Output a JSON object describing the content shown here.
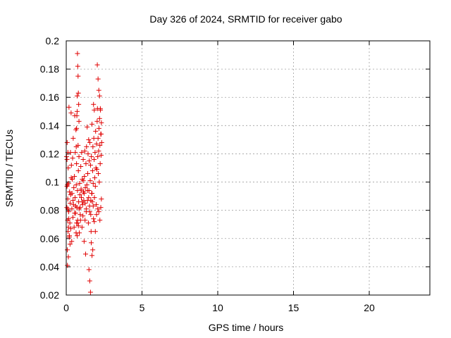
{
  "chart_data": {
    "type": "scatter",
    "title": "Day 326 of 2024, SRMTID for receiver gabo",
    "xlabel": "GPS time / hours",
    "ylabel": "SRMTID / TECUs",
    "xlim": [
      0,
      24
    ],
    "ylim": [
      0.02,
      0.2
    ],
    "xticks": [
      0,
      5,
      10,
      15,
      20
    ],
    "xtick_labels": [
      "0",
      "5",
      "10",
      "15",
      "20"
    ],
    "yticks": [
      0.02,
      0.04,
      0.06,
      0.08,
      0.1,
      0.12,
      0.14,
      0.16,
      0.18,
      0.2
    ],
    "ytick_labels": [
      "0.02",
      "0.04",
      "0.06",
      "0.08",
      "0.1",
      "0.12",
      "0.14",
      "0.16",
      "0.18",
      "0.2"
    ],
    "grid": true,
    "marker": "+",
    "marker_color": "#e00000",
    "series": [
      {
        "name": "SRMTID",
        "x": [
          0.02,
          0.04,
          0.05,
          0.06,
          0.07,
          0.08,
          0.09,
          0.1,
          0.11,
          0.12,
          0.13,
          0.14,
          0.15,
          0.16,
          0.18,
          0.2,
          0.22,
          0.24,
          0.26,
          0.28,
          0.3,
          0.32,
          0.34,
          0.36,
          0.38,
          0.4,
          0.42,
          0.44,
          0.46,
          0.48,
          0.5,
          0.52,
          0.54,
          0.56,
          0.58,
          0.6,
          0.62,
          0.64,
          0.66,
          0.68,
          0.7,
          0.72,
          0.74,
          0.76,
          0.78,
          0.8,
          0.82,
          0.84,
          0.86,
          0.88,
          0.9,
          0.92,
          0.94,
          0.96,
          0.98,
          1.0,
          1.02,
          1.04,
          1.06,
          1.08,
          1.1,
          1.12,
          1.14,
          1.16,
          1.18,
          1.2,
          1.22,
          1.24,
          1.26,
          1.28,
          1.3,
          1.32,
          1.34,
          1.36,
          1.38,
          1.4,
          1.42,
          1.44,
          1.46,
          1.48,
          1.5,
          1.52,
          1.54,
          1.56,
          1.58,
          1.6,
          1.62,
          1.64,
          1.66,
          1.68,
          1.7,
          1.72,
          1.74,
          1.76,
          1.78,
          1.8,
          1.82,
          1.84,
          1.86,
          1.88,
          1.9,
          1.92,
          1.94,
          1.96,
          1.98,
          2.0,
          2.02,
          2.04,
          2.06,
          2.08,
          2.1,
          2.12,
          2.14,
          2.16,
          2.18,
          2.2,
          2.22,
          2.24,
          2.26,
          2.28,
          2.3,
          2.32,
          2.34,
          0.05,
          0.08,
          0.11,
          0.14,
          0.17,
          0.21,
          0.25,
          0.29,
          0.33,
          0.37,
          0.45,
          0.55,
          0.62,
          0.65,
          0.68,
          0.72,
          0.75,
          0.8,
          0.85,
          0.92,
          0.98,
          1.05,
          1.12,
          1.18,
          1.25,
          1.32,
          1.4,
          1.48,
          1.55,
          1.62,
          1.7,
          1.78,
          1.85,
          1.92,
          2.0,
          2.08,
          2.15,
          2.22,
          2.28,
          2.32,
          0.66,
          0.68,
          0.7,
          0.72,
          0.74,
          0.76,
          0.78,
          0.8,
          0.82,
          0.84,
          1.5,
          1.55,
          1.6,
          1.65,
          1.7,
          1.75,
          1.8,
          1.85,
          2.05,
          2.1,
          2.15,
          2.2,
          2.25,
          2.3
        ],
        "y": [
          0.118,
          0.082,
          0.097,
          0.128,
          0.052,
          0.041,
          0.073,
          0.088,
          0.121,
          0.065,
          0.11,
          0.047,
          0.099,
          0.079,
          0.153,
          0.061,
          0.093,
          0.071,
          0.085,
          0.121,
          0.067,
          0.149,
          0.112,
          0.058,
          0.092,
          0.102,
          0.117,
          0.075,
          0.131,
          0.084,
          0.096,
          0.068,
          0.104,
          0.147,
          0.089,
          0.121,
          0.078,
          0.137,
          0.098,
          0.113,
          0.082,
          0.15,
          0.094,
          0.071,
          0.126,
          0.108,
          0.086,
          0.118,
          0.064,
          0.099,
          0.091,
          0.082,
          0.073,
          0.111,
          0.095,
          0.089,
          0.121,
          0.068,
          0.102,
          0.084,
          0.076,
          0.116,
          0.093,
          0.087,
          0.058,
          0.104,
          0.122,
          0.073,
          0.096,
          0.049,
          0.113,
          0.081,
          0.125,
          0.098,
          0.139,
          0.087,
          0.106,
          0.12,
          0.071,
          0.13,
          0.094,
          0.115,
          0.083,
          0.128,
          0.101,
          0.112,
          0.077,
          0.065,
          0.118,
          0.092,
          0.141,
          0.086,
          0.108,
          0.125,
          0.099,
          0.074,
          0.131,
          0.116,
          0.089,
          0.103,
          0.121,
          0.097,
          0.136,
          0.11,
          0.084,
          0.127,
          0.109,
          0.143,
          0.152,
          0.118,
          0.131,
          0.106,
          0.122,
          0.138,
          0.1,
          0.145,
          0.126,
          0.113,
          0.151,
          0.134,
          0.119,
          0.142,
          0.128,
          0.116,
          0.098,
          0.081,
          0.068,
          0.074,
          0.062,
          0.056,
          0.091,
          0.103,
          0.081,
          0.087,
          0.078,
          0.083,
          0.064,
          0.071,
          0.062,
          0.073,
          0.069,
          0.081,
          0.077,
          0.094,
          0.086,
          0.101,
          0.092,
          0.085,
          0.079,
          0.094,
          0.089,
          0.079,
          0.087,
          0.092,
          0.083,
          0.072,
          0.065,
          0.077,
          0.081,
          0.079,
          0.073,
          0.082,
          0.088,
          0.125,
          0.138,
          0.147,
          0.161,
          0.191,
          0.182,
          0.175,
          0.163,
          0.155,
          0.143,
          0.038,
          0.03,
          0.022,
          0.057,
          0.048,
          0.052,
          0.155,
          0.151,
          0.183,
          0.173,
          0.165,
          0.161,
          0.152,
          0.134
        ]
      }
    ]
  }
}
